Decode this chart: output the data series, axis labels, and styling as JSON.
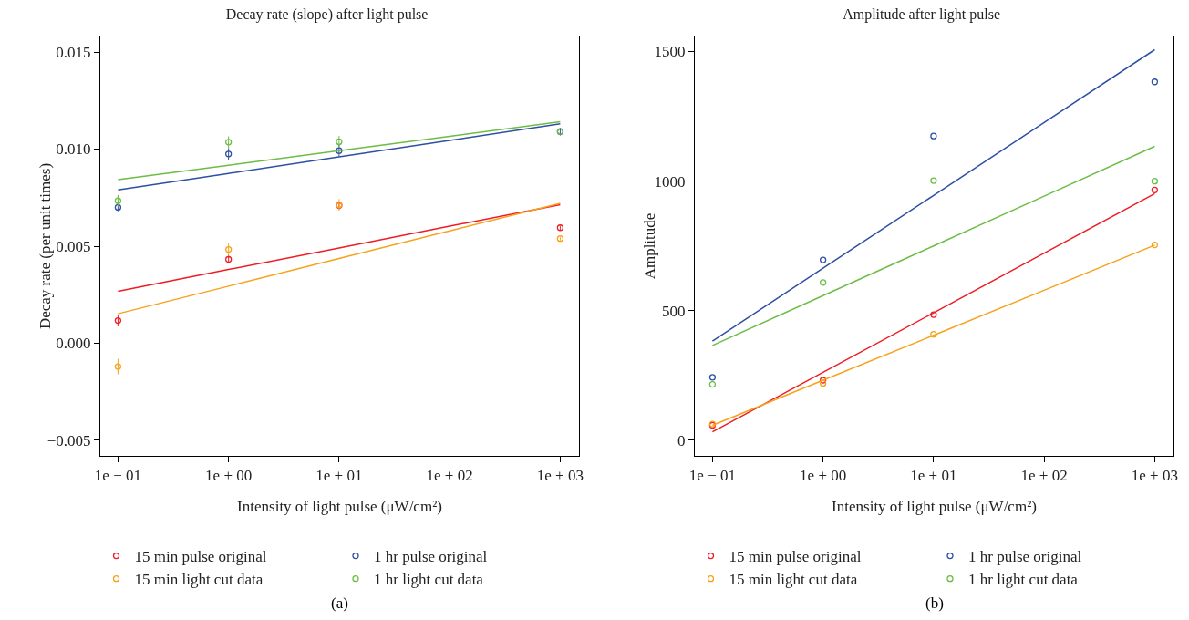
{
  "chart_data": [
    {
      "type": "scatter",
      "title": "Decay rate (slope) after light pulse",
      "xlabel": "Intensity of light pulse (μW/cm²)",
      "ylabel": "Decay rate (per unit times)",
      "grid": false,
      "legend": "bottom",
      "marker": "circle",
      "line_style": "solid",
      "annotations": [
        "(a)"
      ],
      "categories": [
        "1e − 01",
        "1e + 00",
        "1e + 01",
        "1e + 02",
        "1e + 03"
      ],
      "ylim": [
        -0.0058,
        0.0158
      ],
      "yticks": [
        {
          "value": -0.005,
          "label": "−0.005"
        },
        {
          "value": 0,
          "label": "0.000"
        },
        {
          "value": 0.005,
          "label": "0.005"
        },
        {
          "value": 0.01,
          "label": "0.010"
        },
        {
          "value": 0.015,
          "label": "0.015"
        }
      ],
      "series": [
        {
          "name": "15 min pulse original",
          "color": "#ee1c25",
          "values": [
            0.00117,
            0.00432,
            0.0071,
            null,
            0.00595
          ],
          "errors": [
            0.0003,
            0.0002,
            0.0002,
            null,
            0.0001
          ]
        },
        {
          "name": "1 hr pulse original",
          "color": "#2e4fa3",
          "values": [
            0.007,
            0.00975,
            0.00992,
            null,
            0.0109
          ],
          "errors": [
            0.0002,
            0.0003,
            0.0003,
            null,
            0.0002
          ]
        },
        {
          "name": "15 min light cut data",
          "color": "#f7a21b",
          "values": [
            -0.0012,
            0.00483,
            0.00713,
            null,
            0.00539
          ],
          "errors": [
            0.0004,
            0.0003,
            0.0003,
            null,
            0.0001
          ]
        },
        {
          "name": "1 hr light cut data",
          "color": "#6cbd45",
          "values": [
            0.00734,
            0.01036,
            0.01038,
            null,
            0.01091
          ],
          "errors": [
            0.0003,
            0.0003,
            0.0003,
            null,
            null
          ]
        },
        {
          "type": "line",
          "marker": "none",
          "color": "#ee1c25",
          "values": [
            0.00268,
            0.0038,
            0.00491,
            0.00603,
            0.00714
          ]
        },
        {
          "type": "line",
          "marker": "none",
          "color": "#2e4fa3",
          "values": [
            0.0079,
            0.00875,
            0.0096,
            0.01045,
            0.0113
          ]
        },
        {
          "type": "line",
          "marker": "none",
          "color": "#f7a21b",
          "values": [
            0.00152,
            0.00294,
            0.00437,
            0.00579,
            0.00721
          ]
        },
        {
          "type": "line",
          "marker": "none",
          "color": "#6cbd45",
          "values": [
            0.00843,
            0.00917,
            0.00992,
            0.01066,
            0.01141
          ]
        }
      ]
    },
    {
      "type": "scatter",
      "title": "Amplitude after light pulse",
      "xlabel": "Intensity of light pulse (μW/cm²)",
      "ylabel": "Amplitude",
      "grid": false,
      "legend": "bottom",
      "marker": "circle",
      "line_style": "solid",
      "annotations": [
        "(b)"
      ],
      "categories": [
        "1e − 01",
        "1e + 00",
        "1e + 01",
        "1e + 02",
        "1e + 03"
      ],
      "ylim": [
        -60,
        1558
      ],
      "yticks": [
        0,
        500,
        1000,
        1500
      ],
      "series": [
        {
          "name": "15 min pulse original",
          "color": "#ee1c25",
          "values": [
            58,
            232,
            485,
            null,
            966
          ]
        },
        {
          "name": "1 hr pulse original",
          "color": "#2e4fa3",
          "values": [
            243,
            696,
            1174,
            null,
            1383
          ]
        },
        {
          "name": "15 min light cut data",
          "color": "#f7a21b",
          "values": [
            63,
            220,
            409,
            null,
            754
          ]
        },
        {
          "name": "1 hr light cut data",
          "color": "#6cbd45",
          "values": [
            216,
            609,
            1002,
            null,
            1000
          ]
        },
        {
          "type": "line",
          "marker": "none",
          "color": "#ee1c25",
          "values": [
            33,
            262,
            492,
            722,
            952
          ]
        },
        {
          "type": "line",
          "marker": "none",
          "color": "#2e4fa3",
          "values": [
            383,
            664,
            945,
            1226,
            1507
          ]
        },
        {
          "type": "line",
          "marker": "none",
          "color": "#f7a21b",
          "values": [
            58,
            232,
            405,
            579,
            753
          ]
        },
        {
          "type": "line",
          "marker": "none",
          "color": "#6cbd45",
          "values": [
            366,
            558,
            750,
            942,
            1134
          ]
        }
      ]
    }
  ]
}
